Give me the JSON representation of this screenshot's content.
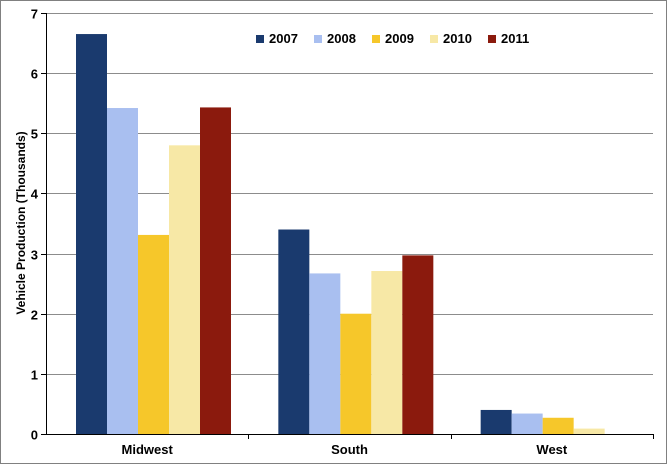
{
  "chart_data": {
    "type": "bar",
    "title": "",
    "xlabel": "",
    "ylabel": "Vehicle Production (Thousands)",
    "ylim": [
      0,
      7
    ],
    "yticks": [
      0,
      1,
      2,
      3,
      4,
      5,
      6,
      7
    ],
    "grid": true,
    "legend_position": "top-right",
    "categories": [
      "Midwest",
      "South",
      "West"
    ],
    "series": [
      {
        "name": "2007",
        "color": "#1a3a6e",
        "values": [
          6.65,
          3.4,
          0.4
        ]
      },
      {
        "name": "2008",
        "color": "#a9bff0",
        "values": [
          5.42,
          2.67,
          0.34
        ]
      },
      {
        "name": "2009",
        "color": "#f6c72a",
        "values": [
          3.31,
          2.0,
          0.27
        ]
      },
      {
        "name": "2010",
        "color": "#f7e8a6",
        "values": [
          4.8,
          2.71,
          0.09
        ]
      },
      {
        "name": "2011",
        "color": "#8b1a0d",
        "values": [
          5.43,
          2.97,
          0.0
        ]
      }
    ]
  }
}
